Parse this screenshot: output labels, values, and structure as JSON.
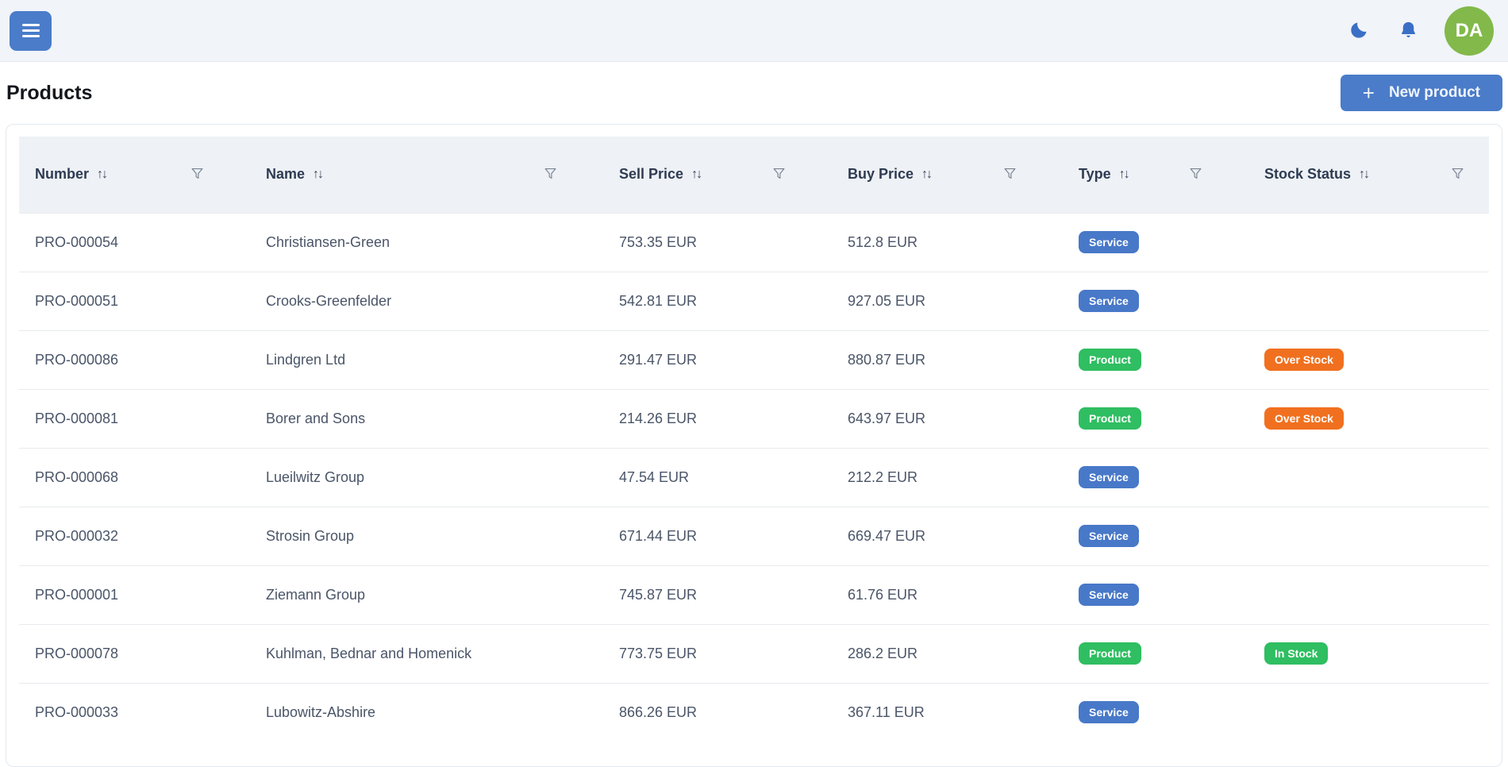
{
  "topbar": {
    "avatar_initials": "DA",
    "icons": {
      "menu": "hamburger-icon",
      "dark_mode": "moon-icon",
      "notifications": "bell-icon"
    }
  },
  "page": {
    "title": "Products",
    "new_product_button": {
      "plus_glyph": "+",
      "label": "New product"
    }
  },
  "table": {
    "sort_glyph": "↑↓",
    "columns": [
      {
        "label": "Number"
      },
      {
        "label": "Name"
      },
      {
        "label": "Sell Price"
      },
      {
        "label": "Buy Price"
      },
      {
        "label": "Type"
      },
      {
        "label": "Stock Status"
      }
    ],
    "rows": [
      {
        "number": "PRO-000054",
        "name": "Christiansen-Green",
        "sell_price": "753.35 EUR",
        "buy_price": "512.8 EUR",
        "type": "Service",
        "stock_status": ""
      },
      {
        "number": "PRO-000051",
        "name": "Crooks-Greenfelder",
        "sell_price": "542.81 EUR",
        "buy_price": "927.05 EUR",
        "type": "Service",
        "stock_status": ""
      },
      {
        "number": "PRO-000086",
        "name": "Lindgren Ltd",
        "sell_price": "291.47 EUR",
        "buy_price": "880.87 EUR",
        "type": "Product",
        "stock_status": "Over Stock"
      },
      {
        "number": "PRO-000081",
        "name": "Borer and Sons",
        "sell_price": "214.26 EUR",
        "buy_price": "643.97 EUR",
        "type": "Product",
        "stock_status": "Over Stock"
      },
      {
        "number": "PRO-000068",
        "name": "Lueilwitz Group",
        "sell_price": "47.54 EUR",
        "buy_price": "212.2 EUR",
        "type": "Service",
        "stock_status": ""
      },
      {
        "number": "PRO-000032",
        "name": "Strosin Group",
        "sell_price": "671.44 EUR",
        "buy_price": "669.47 EUR",
        "type": "Service",
        "stock_status": ""
      },
      {
        "number": "PRO-000001",
        "name": "Ziemann Group",
        "sell_price": "745.87 EUR",
        "buy_price": "61.76 EUR",
        "type": "Service",
        "stock_status": ""
      },
      {
        "number": "PRO-000078",
        "name": "Kuhlman, Bednar and Homenick",
        "sell_price": "773.75 EUR",
        "buy_price": "286.2 EUR",
        "type": "Product",
        "stock_status": "In Stock"
      },
      {
        "number": "PRO-000033",
        "name": "Lubowitz-Abshire",
        "sell_price": "866.26 EUR",
        "buy_price": "367.11 EUR",
        "type": "Service",
        "stock_status": ""
      }
    ]
  },
  "colors": {
    "accent_blue": "#4a7cc9",
    "badge_blue": "#4878c8",
    "badge_green": "#2fbe61",
    "badge_orange": "#f0701f",
    "avatar_green": "#82b94a",
    "topbar_bg": "#f1f4f9",
    "table_header_bg": "#eef1f5"
  }
}
